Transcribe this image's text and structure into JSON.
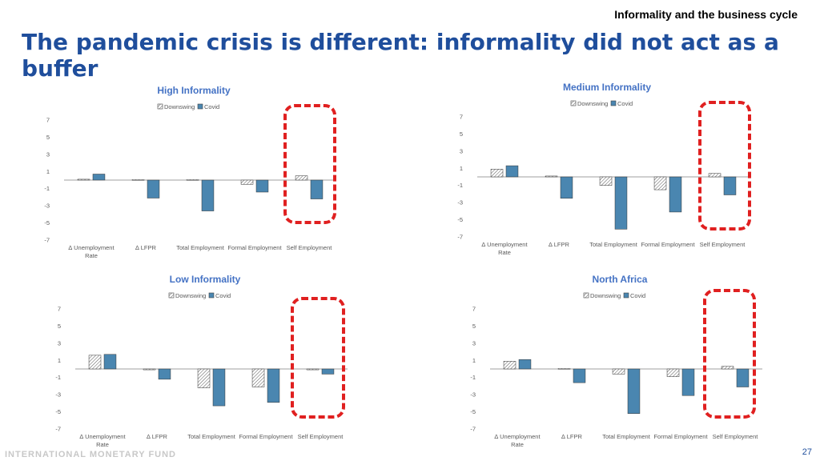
{
  "header": {
    "topic": "Informality and the business cycle",
    "title": "The pandemic crisis is different: informality did not act as a buffer"
  },
  "footer": {
    "org": "INTERNATIONAL MONETARY FUND",
    "page": "27"
  },
  "colors": {
    "title": "#1f4e9c",
    "covid_bar": "#4a86b0",
    "highlight": "#e02020"
  },
  "chart_data": [
    {
      "type": "bar",
      "title": "High Informality",
      "categories": [
        "∆ Unemployment Rate",
        "∆ LFPR",
        "Total Employment",
        "Formal Employment",
        "Self Employment"
      ],
      "series": [
        {
          "name": "Downswing",
          "pattern": "hatched",
          "values": [
            0.1,
            0.05,
            0.05,
            -0.5,
            0.5
          ]
        },
        {
          "name": "Covid",
          "pattern": "solid",
          "values": [
            0.7,
            -2.1,
            -3.6,
            -1.4,
            -2.2
          ]
        }
      ],
      "yticks": [
        7,
        5,
        3,
        1,
        -1,
        -3,
        -5,
        -7
      ],
      "ylim": [
        -7,
        7
      ],
      "legend": "top-center",
      "highlight": "Self Employment"
    },
    {
      "type": "bar",
      "title": "Medium Informality",
      "categories": [
        "∆ Unemployment Rate",
        "∆ LFPR",
        "Total Employment",
        "Formal Employment",
        "Self Employment"
      ],
      "series": [
        {
          "name": "Downswing",
          "pattern": "hatched",
          "values": [
            0.9,
            0.1,
            -1.0,
            -1.5,
            0.4
          ]
        },
        {
          "name": "Covid",
          "pattern": "solid",
          "values": [
            1.3,
            -2.5,
            -6.1,
            -4.1,
            -2.1
          ]
        }
      ],
      "yticks": [
        7,
        5,
        3,
        1,
        -1,
        -3,
        -5,
        -7
      ],
      "ylim": [
        -7,
        7
      ],
      "legend": "top-center",
      "highlight": "Self Employment"
    },
    {
      "type": "bar",
      "title": "Low Informality",
      "categories": [
        "∆ Unemployment Rate",
        "∆ LFPR",
        "Total Employment",
        "Formal Employment",
        "Self Employment"
      ],
      "series": [
        {
          "name": "Downswing",
          "pattern": "hatched",
          "values": [
            1.6,
            -0.1,
            -2.2,
            -2.1,
            -0.1
          ]
        },
        {
          "name": "Covid",
          "pattern": "solid",
          "values": [
            1.7,
            -1.2,
            -4.3,
            -3.9,
            -0.6
          ]
        }
      ],
      "yticks": [
        7,
        5,
        3,
        1,
        -1,
        -3,
        -5,
        -7
      ],
      "ylim": [
        -7,
        7
      ],
      "legend": "top-center",
      "highlight": "Self Employment"
    },
    {
      "type": "bar",
      "title": "North Africa",
      "categories": [
        "∆ Unemployment Rate",
        "∆ LFPR",
        "Total Employment",
        "Formal Employment",
        "Self Employment"
      ],
      "series": [
        {
          "name": "Downswing",
          "pattern": "hatched",
          "values": [
            0.9,
            0.05,
            -0.6,
            -0.9,
            0.3
          ]
        },
        {
          "name": "Covid",
          "pattern": "solid",
          "values": [
            1.1,
            -1.6,
            -5.2,
            -3.1,
            -2.1
          ]
        }
      ],
      "yticks": [
        7,
        5,
        3,
        1,
        -1,
        -3,
        -5,
        -7
      ],
      "ylim": [
        -7,
        7
      ],
      "legend": "top-center",
      "highlight": "Self Employment"
    }
  ]
}
